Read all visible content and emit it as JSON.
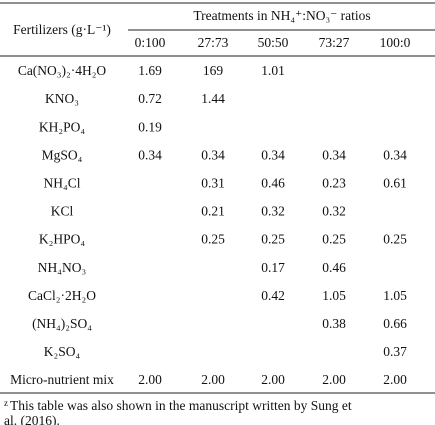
{
  "table": {
    "header": {
      "row_label": "Fertilizers (g·L⁻¹)",
      "group": "Treatments in NH₄⁺:NO₃⁻ ratios",
      "columns": [
        "0:100",
        "27:73",
        "50:50",
        "73:27",
        "100:0"
      ]
    },
    "rows": [
      {
        "label": "Ca(NO₃)₂·4H₂O",
        "cells": [
          "1.69",
          "169",
          "1.01",
          null,
          null
        ]
      },
      {
        "label": "KNO₃",
        "cells": [
          "0.72",
          "1.44",
          null,
          null,
          null
        ]
      },
      {
        "label": "KH₂PO₄",
        "cells": [
          "0.19",
          null,
          null,
          null,
          null
        ]
      },
      {
        "label": "MgSO₄",
        "cells": [
          "0.34",
          "0.34",
          "0.34",
          "0.34",
          "0.34"
        ]
      },
      {
        "label": "NH₄Cl",
        "cells": [
          null,
          "0.31",
          "0.46",
          "0.23",
          "0.61"
        ]
      },
      {
        "label": "KCl",
        "cells": [
          null,
          "0.21",
          "0.32",
          "0.32",
          null
        ]
      },
      {
        "label": "K₂HPO₄",
        "cells": [
          null,
          "0.25",
          "0.25",
          "0.25",
          "0.25"
        ]
      },
      {
        "label": "NH₄NO₃",
        "cells": [
          null,
          null,
          "0.17",
          "0.46",
          null
        ]
      },
      {
        "label": "CaCl₂·2H₂O",
        "cells": [
          null,
          null,
          "0.42",
          "1.05",
          "1.05"
        ]
      },
      {
        "label": "(NH₄)₂SO₄",
        "cells": [
          null,
          null,
          null,
          "0.38",
          "0.66"
        ]
      },
      {
        "label": "K₂SO₄",
        "cells": [
          null,
          null,
          null,
          null,
          "0.37"
        ]
      },
      {
        "label": "Micro-nutrient mix",
        "cells": [
          "2.00",
          "2.00",
          "2.00",
          "2.00",
          "2.00"
        ]
      }
    ],
    "footnote": {
      "marker": "z",
      "lines": [
        "This table was also shown in the manuscript written by Sung et",
        "al. (2016)."
      ]
    }
  }
}
